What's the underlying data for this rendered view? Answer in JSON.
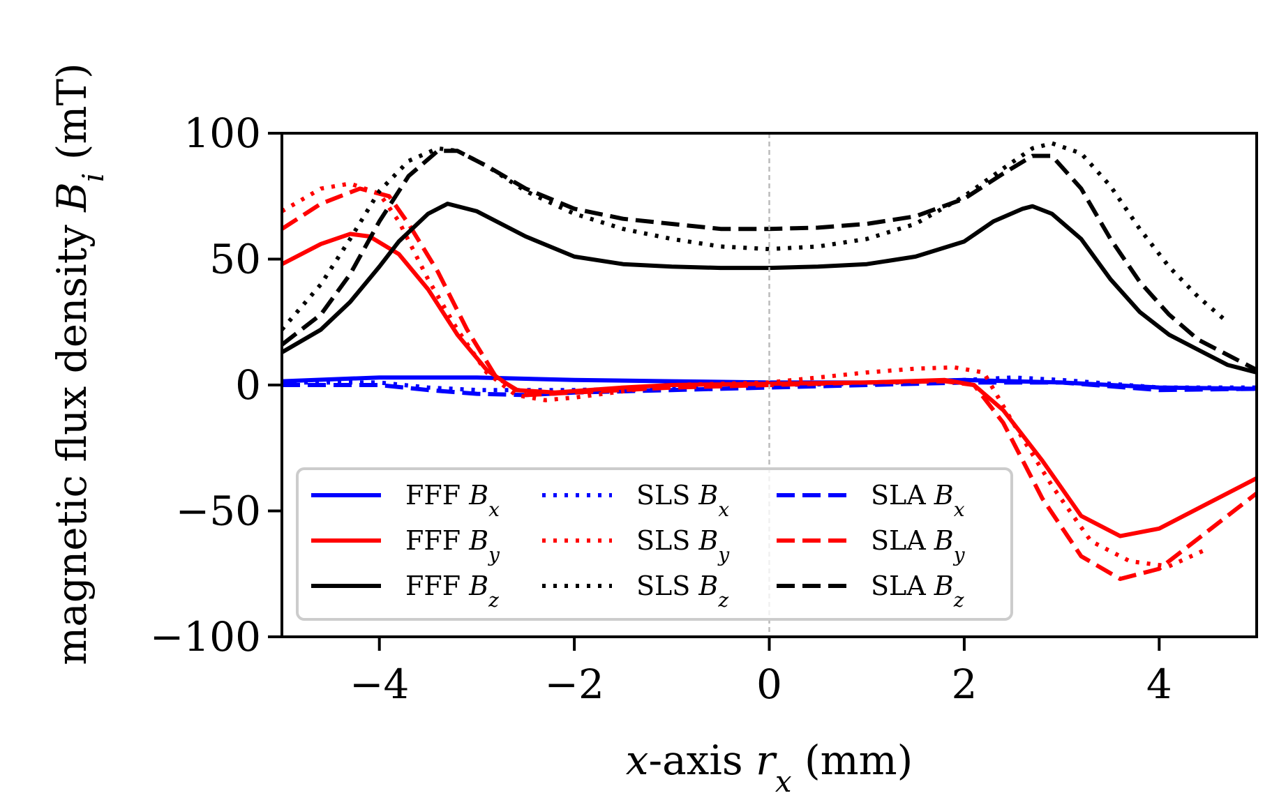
{
  "chart_data": {
    "type": "line",
    "xlabel": "x-axis r_x (mm)",
    "xlabel_parts": [
      "x",
      "-axis ",
      "r",
      "x",
      " (mm)"
    ],
    "ylabel": "magnetic flux density B_i (mT)",
    "ylabel_parts": [
      "magnetic flux density ",
      "B",
      "i",
      " (mT)"
    ],
    "xlim": [
      -5,
      5
    ],
    "ylim": [
      -100,
      100
    ],
    "xticks": [
      -4,
      -2,
      0,
      2,
      4
    ],
    "xtick_labels": [
      "−4",
      "−2",
      "0",
      "2",
      "4"
    ],
    "yticks": [
      -100,
      -50,
      0,
      50,
      100
    ],
    "ytick_labels": [
      "−100",
      "−50",
      "0",
      "50",
      "100"
    ],
    "vline": 0,
    "grid": false,
    "legend_position": "lower-left",
    "colors": {
      "x": "#0000ff",
      "y": "#ff0000",
      "z": "#000000",
      "vline": "#bbbbbb"
    },
    "series": [
      {
        "name": "FFF B_x",
        "method": "FFF",
        "component": "x",
        "style": "solid",
        "x": [
          -5,
          -4,
          -3,
          -2,
          -1,
          0,
          1,
          2,
          3,
          4,
          5
        ],
        "y": [
          1.5,
          3,
          3,
          2,
          1.5,
          1,
          1,
          2,
          1,
          -1,
          -1.5
        ]
      },
      {
        "name": "SLS B_x",
        "method": "SLS",
        "component": "x",
        "style": "dotted",
        "x": [
          -5,
          -4,
          -3.5,
          -3,
          -2,
          -1,
          0,
          1,
          2,
          2.5,
          3,
          4,
          5
        ],
        "y": [
          1,
          1,
          -1,
          -2,
          -2,
          -1,
          0,
          0.5,
          2,
          3,
          2,
          -1,
          -1
        ]
      },
      {
        "name": "SLA B_x",
        "method": "SLA",
        "component": "x",
        "style": "dashed",
        "x": [
          -5,
          -4,
          -3.5,
          -3,
          -2.5,
          -2,
          -1,
          0,
          1,
          2,
          3,
          4,
          5
        ],
        "y": [
          0,
          0,
          -2,
          -3.5,
          -4,
          -3,
          -2,
          -1,
          0,
          1,
          1,
          -2,
          -1.5
        ]
      },
      {
        "name": "FFF B_y",
        "method": "FFF",
        "component": "y",
        "style": "solid",
        "x": [
          -5,
          -4.6,
          -4.3,
          -4.1,
          -3.8,
          -3.5,
          -3.2,
          -2.9,
          -2.6,
          -2.2,
          -1.5,
          -1,
          0,
          1,
          1.8,
          2.1,
          2.4,
          2.8,
          3.2,
          3.6,
          4,
          4.5,
          5
        ],
        "y": [
          48,
          56,
          60,
          59,
          52,
          38,
          20,
          6,
          -2,
          -3,
          -1,
          0,
          0.5,
          1,
          2,
          0,
          -10,
          -30,
          -52,
          -60,
          -57,
          -47,
          -37
        ]
      },
      {
        "name": "SLS B_y",
        "method": "SLS",
        "component": "y",
        "style": "dotted",
        "x": [
          -5,
          -4.6,
          -4.3,
          -4,
          -3.8,
          -3.5,
          -3.2,
          -2.9,
          -2.6,
          -2.3,
          -2,
          -1,
          0,
          1,
          1.5,
          1.9,
          2.2,
          2.5,
          2.9,
          3.3,
          3.7,
          4.1,
          4.5
        ],
        "y": [
          69,
          78,
          80,
          76,
          65,
          42,
          22,
          5,
          -4,
          -6,
          -5,
          0,
          1,
          5,
          6.5,
          7,
          5,
          -15,
          -40,
          -62,
          -70,
          -72,
          -65
        ]
      },
      {
        "name": "SLA B_y",
        "method": "SLA",
        "component": "y",
        "style": "dashed",
        "x": [
          -5,
          -4.6,
          -4.2,
          -3.9,
          -3.7,
          -3.4,
          -3.1,
          -2.8,
          -2.5,
          -2,
          -1,
          0,
          1,
          1.8,
          2.1,
          2.4,
          2.8,
          3.2,
          3.6,
          4,
          4.5,
          5
        ],
        "y": [
          62,
          72,
          78,
          75,
          64,
          45,
          22,
          3,
          -4,
          -3,
          -1,
          0,
          1,
          1.5,
          0,
          -15,
          -45,
          -68,
          -77,
          -73,
          -58,
          -43
        ]
      },
      {
        "name": "FFF B_z",
        "method": "FFF",
        "component": "z",
        "style": "solid",
        "x": [
          -5,
          -4.6,
          -4.3,
          -4,
          -3.8,
          -3.5,
          -3.3,
          -3,
          -2.5,
          -2,
          -1.5,
          -1,
          -0.5,
          0,
          0.5,
          1,
          1.5,
          2,
          2.3,
          2.6,
          2.7,
          2.9,
          3.2,
          3.5,
          3.8,
          4.1,
          4.4,
          4.7,
          5
        ],
        "y": [
          13,
          22,
          33,
          47,
          57,
          68,
          72,
          69,
          59,
          51,
          48,
          47,
          46.5,
          46.5,
          47,
          48,
          51,
          57,
          65,
          70,
          71,
          68,
          58,
          42,
          29,
          20,
          14,
          8,
          5
        ]
      },
      {
        "name": "SLS B_z",
        "method": "SLS",
        "component": "z",
        "style": "dotted",
        "x": [
          -5,
          -4.6,
          -4.3,
          -4,
          -3.7,
          -3.4,
          -3.2,
          -2.9,
          -2.5,
          -2,
          -1.5,
          -1,
          -0.5,
          0,
          0.5,
          1,
          1.5,
          2,
          2.4,
          2.7,
          2.9,
          3.2,
          3.5,
          3.8,
          4.1,
          4.4,
          4.7
        ],
        "y": [
          22,
          40,
          58,
          77,
          89,
          94,
          93,
          87,
          77,
          68,
          62,
          58,
          55,
          54,
          55,
          58,
          64,
          75,
          86,
          94,
          96,
          92,
          79,
          62,
          47,
          35,
          25
        ]
      },
      {
        "name": "SLA B_z",
        "method": "SLA",
        "component": "z",
        "style": "dashed",
        "x": [
          -5,
          -4.6,
          -4.3,
          -4,
          -3.7,
          -3.4,
          -3.2,
          -2.9,
          -2.5,
          -2,
          -1.5,
          -1,
          -0.5,
          0,
          0.5,
          1,
          1.5,
          2,
          2.4,
          2.7,
          2.9,
          3.2,
          3.5,
          3.8,
          4.1,
          4.4,
          4.7,
          5
        ],
        "y": [
          16,
          28,
          44,
          65,
          83,
          93,
          93,
          87,
          78,
          70,
          66,
          64,
          62,
          62,
          62.5,
          64,
          67,
          74,
          84,
          91,
          91,
          78,
          58,
          41,
          28,
          18,
          12,
          6
        ]
      }
    ],
    "legend": {
      "columns": [
        [
          {
            "label": "FFF",
            "sym": "B",
            "sub": "x",
            "series": 0
          },
          {
            "label": "FFF",
            "sym": "B",
            "sub": "y",
            "series": 3
          },
          {
            "label": "FFF",
            "sym": "B",
            "sub": "z",
            "series": 6
          }
        ],
        [
          {
            "label": "SLS",
            "sym": "B",
            "sub": "x",
            "series": 1
          },
          {
            "label": "SLS",
            "sym": "B",
            "sub": "y",
            "series": 4
          },
          {
            "label": "SLS",
            "sym": "B",
            "sub": "z",
            "series": 7
          }
        ],
        [
          {
            "label": "SLA",
            "sym": "B",
            "sub": "x",
            "series": 2
          },
          {
            "label": "SLA",
            "sym": "B",
            "sub": "y",
            "series": 5
          },
          {
            "label": "SLA",
            "sym": "B",
            "sub": "z",
            "series": 8
          }
        ]
      ]
    }
  }
}
